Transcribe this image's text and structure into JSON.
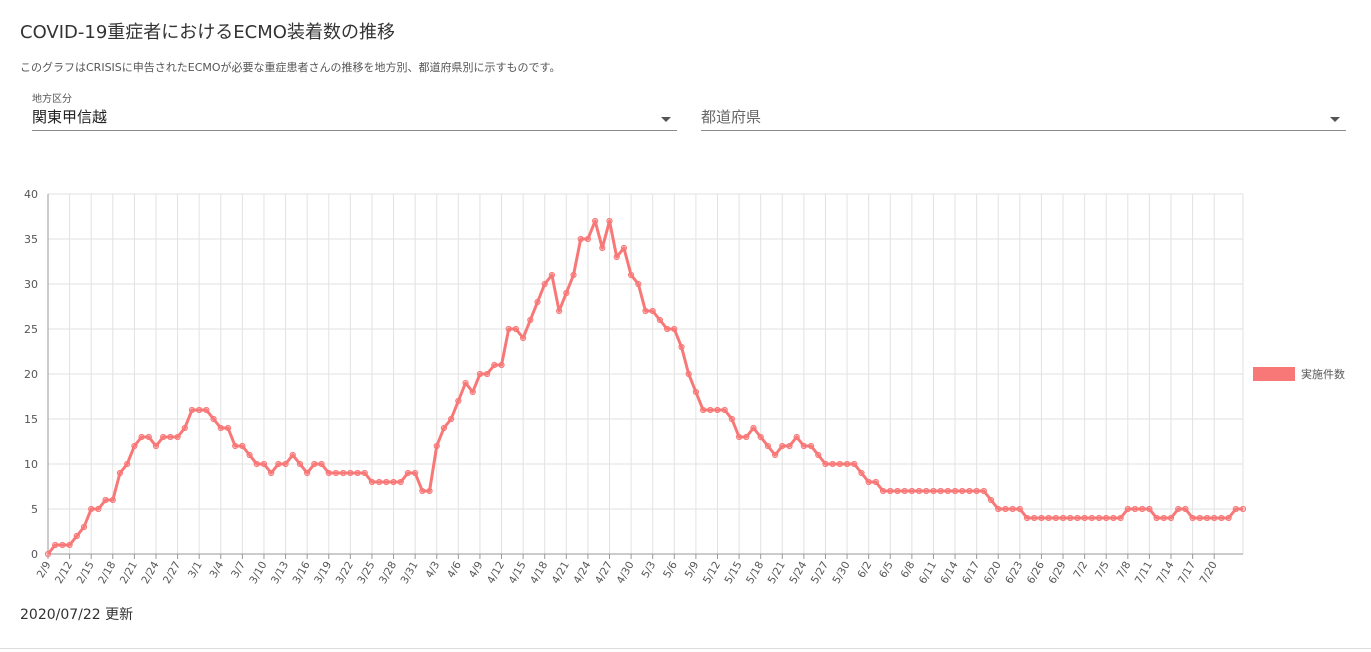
{
  "page": {
    "title": "COVID-19重症者におけるECMO装着数の推移",
    "subtitle": "このグラフはCRISISに申告されたECMOが必要な重症患者さんの推移を地方別、都道府県別に示すものです。",
    "updated": "2020/07/22 更新"
  },
  "filters": {
    "region_label": "地方区分",
    "region_value": "関東甲信越",
    "prefecture_placeholder": "都道府県"
  },
  "colors": {
    "series": "#f87878",
    "grid": "#e2e2e2",
    "axis": "#999999"
  },
  "chart_data": {
    "type": "line",
    "start_date": "2020-02-09",
    "x_tick_labels": [
      "2/9",
      "2/12",
      "2/15",
      "2/18",
      "2/21",
      "2/24",
      "2/27",
      "3/1",
      "3/4",
      "3/7",
      "3/10",
      "3/13",
      "3/16",
      "3/19",
      "3/22",
      "3/25",
      "3/28",
      "3/31",
      "4/3",
      "4/6",
      "4/9",
      "4/12",
      "4/15",
      "4/18",
      "4/21",
      "4/24",
      "4/27",
      "4/30",
      "5/3",
      "5/6",
      "5/9",
      "5/12",
      "5/15",
      "5/18",
      "5/21",
      "5/24",
      "5/27",
      "5/30",
      "6/2",
      "6/5",
      "6/8",
      "6/11",
      "6/14",
      "6/17",
      "6/20",
      "6/23",
      "6/26",
      "6/29",
      "7/2",
      "7/5",
      "7/8",
      "7/11",
      "7/14",
      "7/17",
      "7/20"
    ],
    "ylim": [
      0,
      40
    ],
    "y_ticks": [
      0,
      5,
      10,
      15,
      20,
      25,
      30,
      35,
      40
    ],
    "grid": true,
    "legend_position": "right",
    "series": [
      {
        "name": "実施件数",
        "color": "#f87878",
        "values": [
          0,
          1,
          1,
          1,
          2,
          3,
          5,
          5,
          6,
          6,
          9,
          10,
          12,
          13,
          13,
          12,
          13,
          13,
          13,
          14,
          16,
          16,
          16,
          15,
          14,
          14,
          12,
          12,
          11,
          10,
          10,
          9,
          10,
          10,
          11,
          10,
          9,
          10,
          10,
          9,
          9,
          9,
          9,
          9,
          9,
          8,
          8,
          8,
          8,
          8,
          9,
          9,
          7,
          7,
          12,
          14,
          15,
          17,
          19,
          18,
          20,
          20,
          21,
          21,
          25,
          25,
          24,
          26,
          28,
          30,
          31,
          27,
          29,
          31,
          35,
          35,
          37,
          34,
          37,
          33,
          34,
          31,
          30,
          27,
          27,
          26,
          25,
          25,
          23,
          20,
          18,
          16,
          16,
          16,
          16,
          15,
          13,
          13,
          14,
          13,
          12,
          11,
          12,
          12,
          13,
          12,
          12,
          11,
          10,
          10,
          10,
          10,
          10,
          9,
          8,
          8,
          7,
          7,
          7,
          7,
          7,
          7,
          7,
          7,
          7,
          7,
          7,
          7,
          7,
          7,
          7,
          6,
          5,
          5,
          5,
          5,
          4,
          4,
          4,
          4,
          4,
          4,
          4,
          4,
          4,
          4,
          4,
          4,
          4,
          4,
          5,
          5,
          5,
          5,
          4,
          4,
          4,
          5,
          5,
          4,
          4,
          4,
          4,
          4,
          4,
          5,
          5
        ]
      }
    ]
  }
}
